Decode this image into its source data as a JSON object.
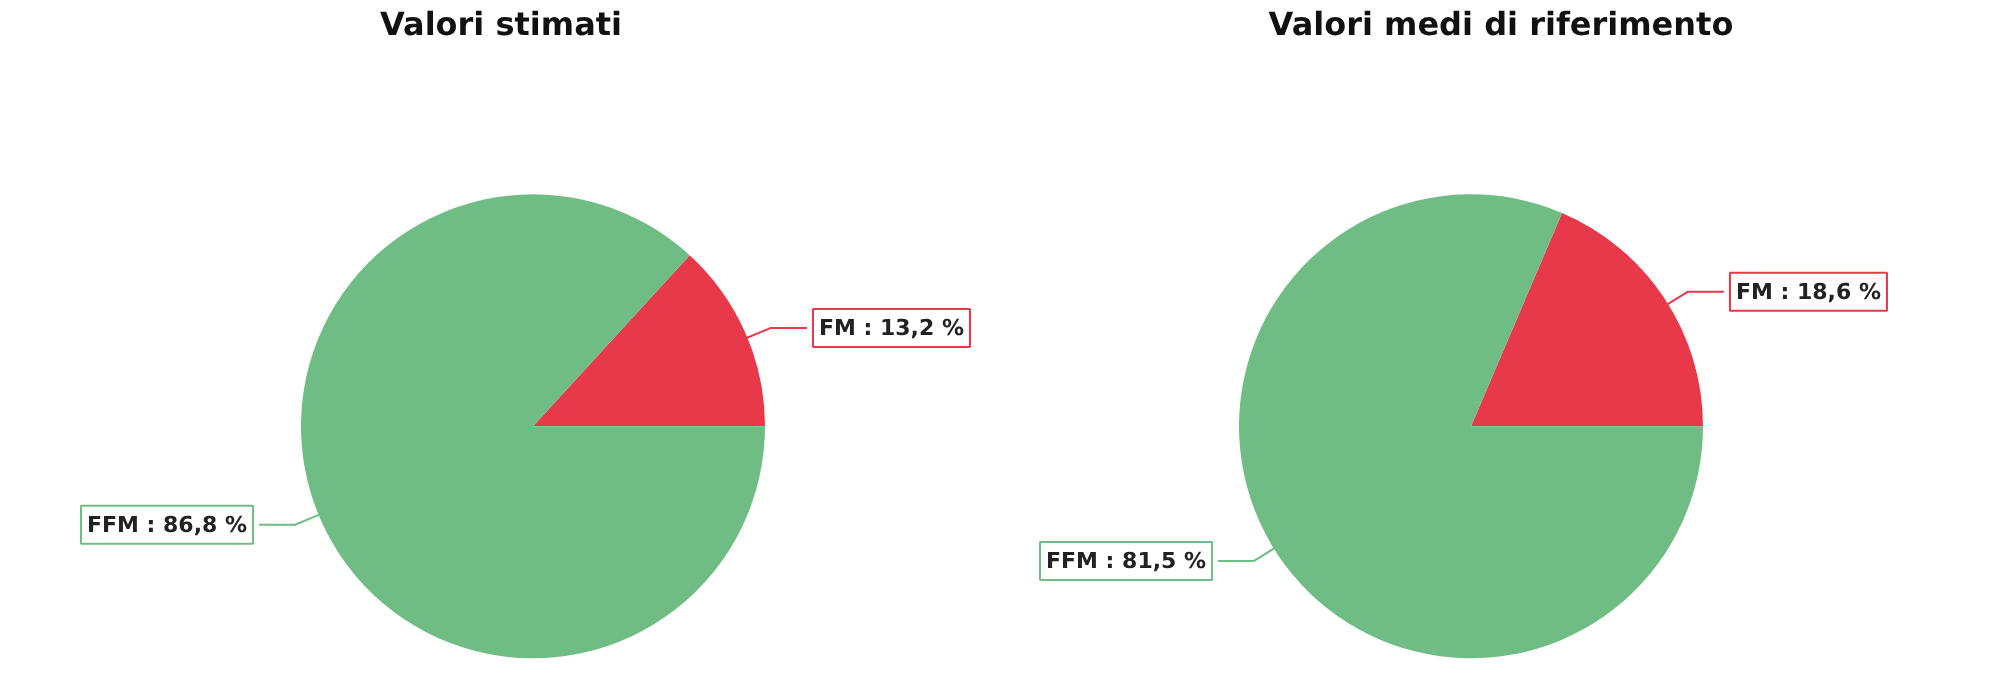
{
  "chart_data": [
    {
      "type": "pie",
      "title": "Valori stimati",
      "categories": [
        "FM",
        "FFM"
      ],
      "values": [
        13.2,
        86.8
      ],
      "colors": [
        "#e8394a",
        "#6fbd84"
      ],
      "value_labels": [
        ": 13,2 %",
        ": 86,8 %"
      ]
    },
    {
      "type": "pie",
      "title": "Valori medi di riferimento",
      "categories": [
        "FM",
        "FFM"
      ],
      "values": [
        18.6,
        81.5
      ],
      "colors": [
        "#e8394a",
        "#6fbd84"
      ],
      "value_labels": [
        ": 18,6 %",
        ": 81,5 %"
      ]
    }
  ]
}
